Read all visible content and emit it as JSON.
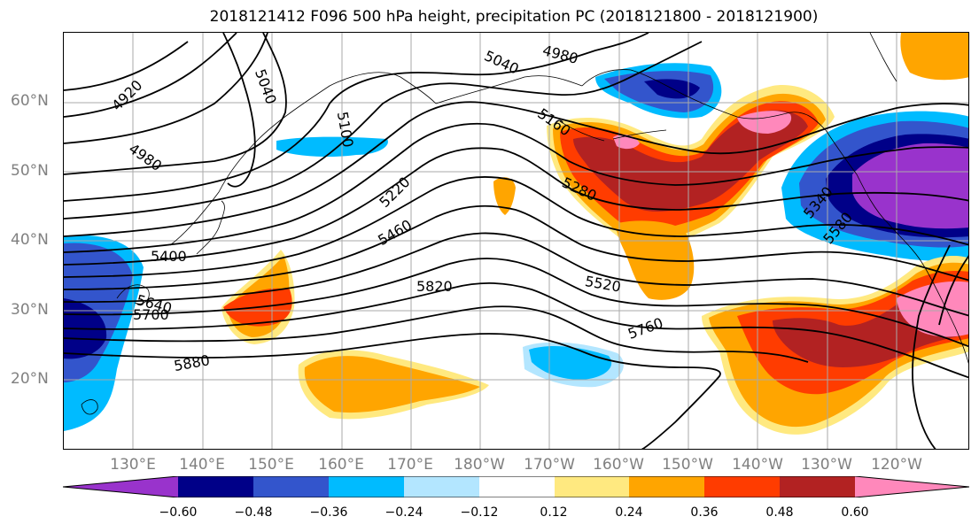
{
  "title": "2018121412 F096 500 hPa height, precipitation PC (2018121800 - 2018121900)",
  "map": {
    "lat_labels": [
      "60°N",
      "50°N",
      "40°N",
      "30°N",
      "20°N"
    ],
    "lon_labels": [
      "130°E",
      "140°E",
      "150°E",
      "160°E",
      "170°E",
      "180°W",
      "170°W",
      "160°W",
      "150°W",
      "140°W",
      "130°W",
      "120°W"
    ],
    "contour_labels": [
      "4920",
      "4980",
      "5040",
      "5100",
      "4980",
      "5040",
      "5160",
      "5220",
      "5280",
      "5340",
      "5400",
      "5460",
      "5520",
      "5580",
      "5640",
      "5700",
      "5760",
      "5820",
      "5880"
    ],
    "land_color": "#ffffff",
    "grid_color": "#aaaaaa"
  },
  "colorbar": {
    "colors": [
      "#9933cc",
      "#000088",
      "#3355cc",
      "#00bbff",
      "#b3e6ff",
      "#ffffff",
      "#ffe980",
      "#ffa500",
      "#ff3c00",
      "#b22222",
      "#ff88bb"
    ],
    "tick_labels": [
      "−0.60",
      "−0.48",
      "−0.36",
      "−0.24",
      "−0.12",
      "0.12",
      "0.24",
      "0.36",
      "0.48",
      "0.60"
    ]
  }
}
